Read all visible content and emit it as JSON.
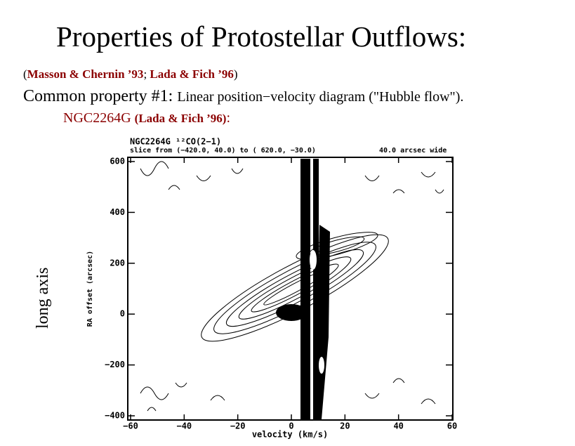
{
  "header": {
    "title": "Properties of Protostellar Outflows:"
  },
  "citation": [
    "(",
    "Masson & Chernin ’93",
    "; ",
    "Lada & Fich ’96",
    ")"
  ],
  "property": {
    "lead": "Common property #1:",
    "text": "Linear position−velocity diagram (\"Hubble flow\")."
  },
  "example": {
    "object": "NGC2264G",
    "ref": "(Lada & Fich ’96)",
    "colon": ":"
  },
  "figure": {
    "title": "NGC2264G ¹²CO(2−1)",
    "subtitle": "slice from (−420.0, 40.0) to ( 620.0, −30.0)",
    "width_note": "40.0 arcsec wide",
    "x_label": "velocity (km/s)",
    "y_label": "RA offset (arcsec)",
    "side_label": "long axis",
    "xticks": [
      {
        "value": -60,
        "label": "−60"
      },
      {
        "value": -40,
        "label": "−40"
      },
      {
        "value": -20,
        "label": "−20"
      },
      0,
      20,
      40,
      60
    ],
    "yticks": [
      600,
      400,
      200,
      0,
      {
        "value": -200,
        "label": "−200"
      },
      {
        "value": -400,
        "label": "−400"
      }
    ]
  }
}
